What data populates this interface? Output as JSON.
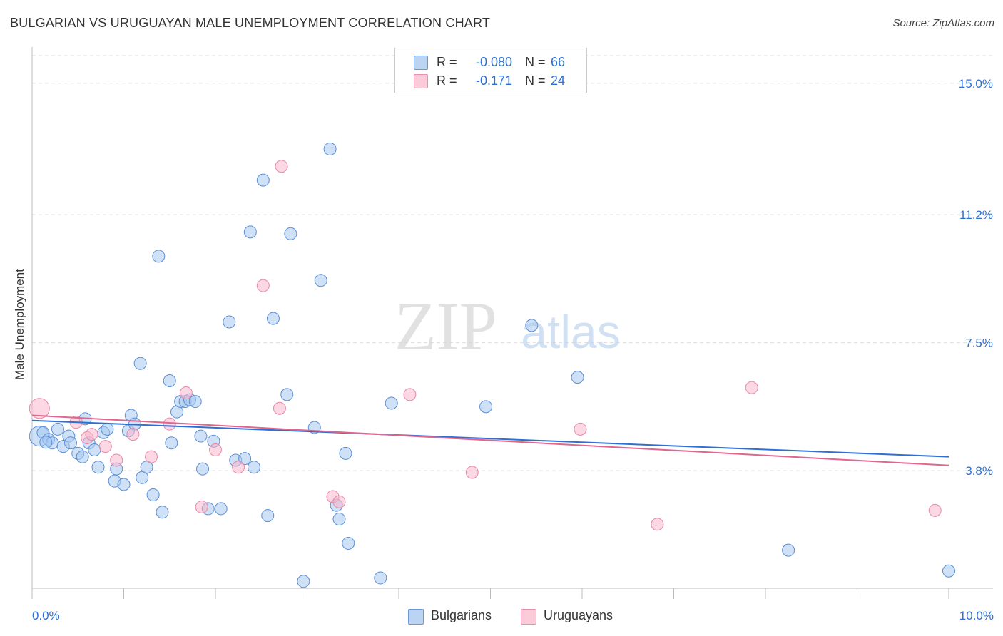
{
  "header": {
    "title": "BULGARIAN VS URUGUAYAN MALE UNEMPLOYMENT CORRELATION CHART",
    "source": "Source: ZipAtlas.com"
  },
  "watermark": {
    "zip": "ZIP",
    "atlas": "atlas"
  },
  "legend_top": {
    "rows": [
      {
        "r_label": "R =",
        "r_value": "-0.080",
        "n_label": "N =",
        "n_value": "66"
      },
      {
        "r_label": "R =",
        "r_value": "-0.171",
        "n_label": "N =",
        "n_value": "24"
      }
    ]
  },
  "legend_bottom": {
    "items": [
      "Bulgarians",
      "Uruguayans"
    ]
  },
  "colors": {
    "blue_fill": "#a8c8f0",
    "blue_stroke": "#5b8fd6",
    "blue_line": "#2e6fd1",
    "pink_fill": "#f7b8cc",
    "pink_stroke": "#e888a8",
    "pink_line": "#e0668e",
    "tick_text": "#2e6fd1",
    "grid": "#dddddd"
  },
  "chart_data": {
    "type": "scatter",
    "title": "BULGARIAN VS URUGUAYAN MALE UNEMPLOYMENT CORRELATION CHART",
    "xlabel": "",
    "ylabel": "Male Unemployment",
    "xlim": [
      0,
      10
    ],
    "ylim": [
      0.4,
      15.8
    ],
    "x_tick_labels": [
      "0.0%",
      "10.0%"
    ],
    "y_ticks": [
      3.8,
      7.5,
      11.2,
      15.0
    ],
    "y_tick_labels": [
      "3.8%",
      "7.5%",
      "11.2%",
      "15.0%"
    ],
    "grid": true,
    "series": [
      {
        "name": "Bulgarians",
        "r": -0.08,
        "n": 66,
        "trend": {
          "x": [
            0,
            10
          ],
          "y": [
            5.25,
            4.2
          ]
        },
        "points": [
          {
            "x": 0.08,
            "y": 4.8,
            "s": "l"
          },
          {
            "x": 0.12,
            "y": 4.9
          },
          {
            "x": 0.18,
            "y": 4.7
          },
          {
            "x": 0.22,
            "y": 4.6
          },
          {
            "x": 0.28,
            "y": 5.0
          },
          {
            "x": 0.34,
            "y": 4.5
          },
          {
            "x": 0.4,
            "y": 4.8
          },
          {
            "x": 0.42,
            "y": 4.6
          },
          {
            "x": 0.5,
            "y": 4.3
          },
          {
            "x": 0.55,
            "y": 4.2
          },
          {
            "x": 0.58,
            "y": 5.3
          },
          {
            "x": 0.62,
            "y": 4.6
          },
          {
            "x": 0.68,
            "y": 4.4
          },
          {
            "x": 0.72,
            "y": 3.9
          },
          {
            "x": 0.78,
            "y": 4.9
          },
          {
            "x": 0.82,
            "y": 5.0
          },
          {
            "x": 0.9,
            "y": 3.5
          },
          {
            "x": 0.92,
            "y": 3.85
          },
          {
            "x": 1.0,
            "y": 3.4
          },
          {
            "x": 1.05,
            "y": 4.95
          },
          {
            "x": 1.08,
            "y": 5.4
          },
          {
            "x": 1.12,
            "y": 5.15
          },
          {
            "x": 1.2,
            "y": 3.6
          },
          {
            "x": 1.25,
            "y": 3.9
          },
          {
            "x": 1.32,
            "y": 3.1
          },
          {
            "x": 1.18,
            "y": 6.9
          },
          {
            "x": 1.38,
            "y": 10.0
          },
          {
            "x": 1.42,
            "y": 2.6
          },
          {
            "x": 1.5,
            "y": 6.4
          },
          {
            "x": 1.52,
            "y": 4.6
          },
          {
            "x": 1.58,
            "y": 5.5
          },
          {
            "x": 1.62,
            "y": 5.8
          },
          {
            "x": 1.67,
            "y": 5.8
          },
          {
            "x": 1.72,
            "y": 5.85
          },
          {
            "x": 1.78,
            "y": 5.8
          },
          {
            "x": 1.84,
            "y": 4.8
          },
          {
            "x": 1.86,
            "y": 3.85
          },
          {
            "x": 1.92,
            "y": 2.7
          },
          {
            "x": 1.98,
            "y": 4.65
          },
          {
            "x": 2.06,
            "y": 2.7
          },
          {
            "x": 2.15,
            "y": 8.1
          },
          {
            "x": 2.22,
            "y": 4.1
          },
          {
            "x": 2.32,
            "y": 4.15
          },
          {
            "x": 2.38,
            "y": 10.7
          },
          {
            "x": 2.42,
            "y": 3.9
          },
          {
            "x": 2.52,
            "y": 12.2
          },
          {
            "x": 2.57,
            "y": 2.5
          },
          {
            "x": 2.63,
            "y": 8.2
          },
          {
            "x": 2.78,
            "y": 6.0
          },
          {
            "x": 2.82,
            "y": 10.65
          },
          {
            "x": 2.96,
            "y": 0.6
          },
          {
            "x": 3.08,
            "y": 5.05
          },
          {
            "x": 3.15,
            "y": 9.3
          },
          {
            "x": 3.25,
            "y": 13.1
          },
          {
            "x": 3.32,
            "y": 2.8
          },
          {
            "x": 3.35,
            "y": 2.4
          },
          {
            "x": 3.42,
            "y": 4.3
          },
          {
            "x": 3.45,
            "y": 1.7
          },
          {
            "x": 3.8,
            "y": 0.7
          },
          {
            "x": 3.92,
            "y": 5.75
          },
          {
            "x": 4.95,
            "y": 5.65
          },
          {
            "x": 5.45,
            "y": 8.0
          },
          {
            "x": 5.95,
            "y": 6.5
          },
          {
            "x": 8.25,
            "y": 1.5
          },
          {
            "x": 10.0,
            "y": 0.9
          },
          {
            "x": 0.15,
            "y": 4.62
          }
        ]
      },
      {
        "name": "Uruguayans",
        "r": -0.171,
        "n": 24,
        "trend": {
          "x": [
            0,
            10
          ],
          "y": [
            5.4,
            3.95
          ]
        },
        "points": [
          {
            "x": 0.08,
            "y": 5.6,
            "s": "l"
          },
          {
            "x": 0.48,
            "y": 5.2
          },
          {
            "x": 0.6,
            "y": 4.75
          },
          {
            "x": 0.65,
            "y": 4.85
          },
          {
            "x": 0.8,
            "y": 4.5
          },
          {
            "x": 0.92,
            "y": 4.1
          },
          {
            "x": 1.1,
            "y": 4.85
          },
          {
            "x": 1.3,
            "y": 4.2
          },
          {
            "x": 1.5,
            "y": 5.15
          },
          {
            "x": 1.68,
            "y": 6.05
          },
          {
            "x": 1.85,
            "y": 2.75
          },
          {
            "x": 2.0,
            "y": 4.4
          },
          {
            "x": 2.25,
            "y": 3.9
          },
          {
            "x": 2.52,
            "y": 9.15
          },
          {
            "x": 2.7,
            "y": 5.6
          },
          {
            "x": 2.72,
            "y": 12.6
          },
          {
            "x": 3.28,
            "y": 3.05
          },
          {
            "x": 3.35,
            "y": 2.9
          },
          {
            "x": 4.12,
            "y": 6.0
          },
          {
            "x": 4.8,
            "y": 3.75
          },
          {
            "x": 5.98,
            "y": 5.0
          },
          {
            "x": 6.82,
            "y": 2.25
          },
          {
            "x": 7.85,
            "y": 6.2
          },
          {
            "x": 9.85,
            "y": 2.65
          }
        ]
      }
    ]
  }
}
